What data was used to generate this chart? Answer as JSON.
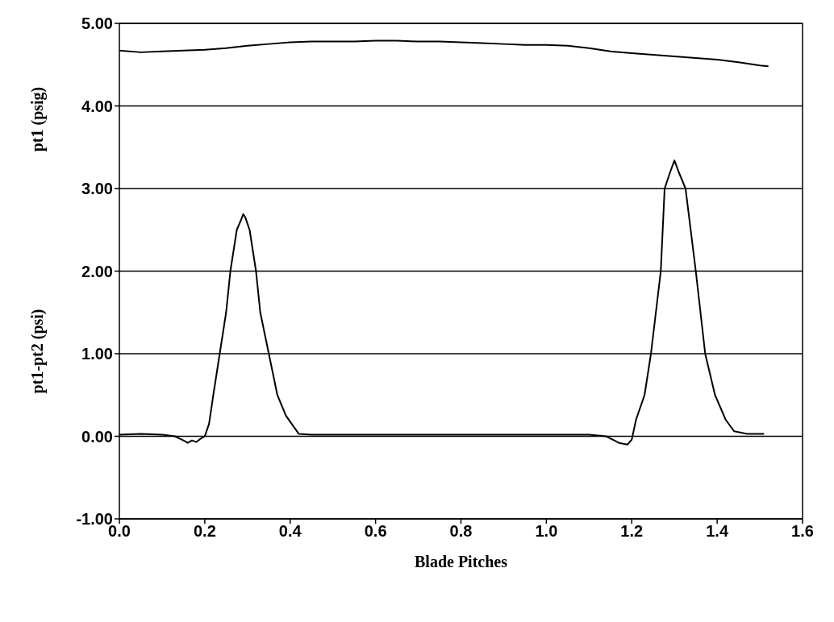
{
  "chart_data": {
    "type": "line",
    "xlabel": "Blade Pitches",
    "ylabel": "pt1-pt2 (psi)",
    "annotations": [
      "pt1 (psig)"
    ],
    "xlim": [
      0,
      1.6
    ],
    "xticks": [
      {
        "value": 0,
        "label": "0.0"
      },
      {
        "value": 0.2,
        "label": "0.2"
      },
      {
        "value": 0.4,
        "label": "0.4"
      },
      {
        "value": 0.6,
        "label": "0.6"
      },
      {
        "value": 0.8,
        "label": "0.8"
      },
      {
        "value": 1,
        "label": "1.0"
      },
      {
        "value": 1.2,
        "label": "1.2"
      },
      {
        "value": 1.4,
        "label": "1.4"
      },
      {
        "value": 1.6,
        "label": "1.6"
      }
    ],
    "ylim": [
      -1,
      5
    ],
    "yticks": [
      {
        "value": -1,
        "label": "-1.00"
      },
      {
        "value": 0,
        "label": "0.00"
      },
      {
        "value": 1,
        "label": "1.00"
      },
      {
        "value": 2,
        "label": "2.00"
      },
      {
        "value": 3,
        "label": "3.00"
      },
      {
        "value": 4,
        "label": "4.00"
      },
      {
        "value": 5,
        "label": "5.00"
      }
    ],
    "grid": "y",
    "marker": "none",
    "line_style": "solid",
    "series": [
      {
        "color": "#000000",
        "x": [
          0,
          0.05,
          0.1,
          0.15,
          0.2,
          0.25,
          0.3,
          0.35,
          0.4,
          0.45,
          0.5,
          0.55,
          0.6,
          0.65,
          0.7,
          0.75,
          0.8,
          0.85,
          0.9,
          0.95,
          1.0,
          1.05,
          1.1,
          1.15,
          1.2,
          1.25,
          1.3,
          1.35,
          1.4,
          1.45,
          1.5,
          1.52
        ],
        "values": [
          4.67,
          4.65,
          4.66,
          4.67,
          4.68,
          4.7,
          4.73,
          4.75,
          4.77,
          4.78,
          4.78,
          4.78,
          4.79,
          4.79,
          4.78,
          4.78,
          4.77,
          4.76,
          4.75,
          4.74,
          4.74,
          4.73,
          4.7,
          4.66,
          4.64,
          4.62,
          4.6,
          4.58,
          4.56,
          4.53,
          4.49,
          4.48
        ]
      },
      {
        "color": "#000000",
        "x": [
          0,
          0.05,
          0.1,
          0.13,
          0.15,
          0.16,
          0.17,
          0.18,
          0.19,
          0.2,
          0.21,
          0.22,
          0.235,
          0.25,
          0.26,
          0.275,
          0.285,
          0.29,
          0.295,
          0.305,
          0.32,
          0.33,
          0.35,
          0.37,
          0.39,
          0.42,
          0.45,
          0.5,
          0.6,
          0.7,
          0.8,
          0.9,
          1.0,
          1.1,
          1.14,
          1.17,
          1.19,
          1.2,
          1.21,
          1.23,
          1.245,
          1.268,
          1.277,
          1.29,
          1.3,
          1.31,
          1.326,
          1.35,
          1.372,
          1.395,
          1.42,
          1.44,
          1.47,
          1.51
        ],
        "values": [
          0.02,
          0.03,
          0.02,
          0.0,
          -0.05,
          -0.08,
          -0.05,
          -0.07,
          -0.03,
          0.0,
          0.15,
          0.5,
          1.0,
          1.5,
          2.0,
          2.5,
          2.62,
          2.69,
          2.65,
          2.5,
          2.0,
          1.5,
          1.0,
          0.5,
          0.25,
          0.03,
          0.02,
          0.02,
          0.02,
          0.02,
          0.02,
          0.02,
          0.02,
          0.02,
          0.0,
          -0.08,
          -0.1,
          -0.04,
          0.2,
          0.5,
          1.0,
          2.0,
          3.0,
          3.2,
          3.34,
          3.2,
          3.0,
          2.0,
          1.0,
          0.5,
          0.2,
          0.06,
          0.03,
          0.03
        ]
      }
    ]
  }
}
